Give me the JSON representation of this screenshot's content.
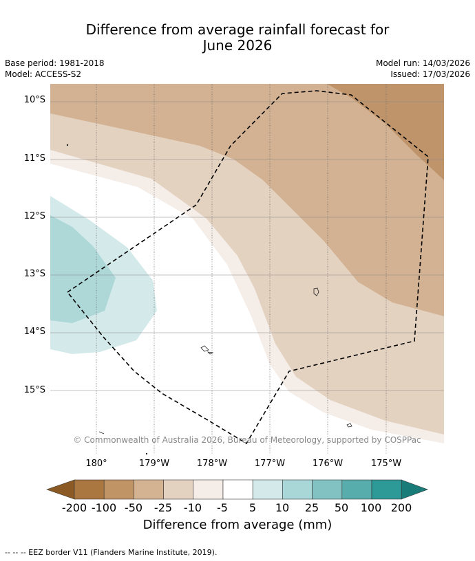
{
  "title_line1": "Difference from average rainfall forecast for",
  "title_line2": "June 2026",
  "base_period": "Base period: 1981-2018",
  "model": "Model: ACCESS-S2",
  "model_run": "Model run: 14/03/2026",
  "issued": "Issued: 17/03/2026",
  "copyright": "© Commonwealth of Australia 2026, Bureau of Meteorology, supported by COSPPac",
  "lat_labels": [
    "10°S",
    "11°S",
    "12°S",
    "13°S",
    "14°S",
    "15°S"
  ],
  "lon_labels": [
    "180°",
    "179°W",
    "178°W",
    "177°W",
    "176°W",
    "175°W"
  ],
  "colorbar": {
    "ticks": [
      "-200",
      "-100",
      "-50",
      "-25",
      "-10",
      "-5",
      "5",
      "10",
      "25",
      "50",
      "100",
      "200"
    ],
    "colors": [
      "#8b5a24",
      "#ab7741",
      "#c19466",
      "#d4b393",
      "#e4d2c1",
      "#f5ede8",
      "#ffffff",
      "#d4eaea",
      "#a9d6d7",
      "#82c2c2",
      "#57acac",
      "#2e9a97",
      "#1a7c79"
    ],
    "title": "Difference from average (mm)"
  },
  "map_colors": {
    "c_m100": "#bf946a",
    "c_m50": "#d3b293",
    "c_m25": "#e4d2c1",
    "c_m10": "#f5ede8",
    "c_p10": "#d4e9e9",
    "c_p25": "#aed7d8"
  },
  "footer": "--  --  -- EEZ border V11 (Flanders Marine Institute, 2019)."
}
